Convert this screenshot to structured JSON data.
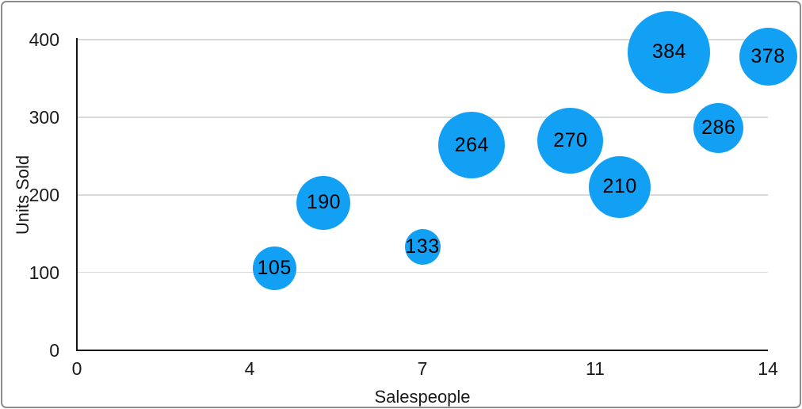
{
  "figure": {
    "background": "#ffffff",
    "frame_border_color": "#8d8d8d"
  },
  "chart_data": {
    "type": "bubble",
    "title": "",
    "xlabel": "Salespeople",
    "ylabel": "Units Sold",
    "xlim": [
      0,
      14
    ],
    "ylim": [
      0,
      400
    ],
    "x_tick_labels": [
      "0",
      "4",
      "7",
      "11",
      "14"
    ],
    "y_tick_values": [
      0,
      100,
      200,
      300,
      400
    ],
    "grid": true,
    "legend": "none",
    "bubble_color": "#12A0F5",
    "bubble_label_color": "#000000",
    "axis_color": "#141414",
    "grid_color": "#d9d9d9",
    "tick_label_color": "#1a1a1a",
    "points": [
      {
        "salespeople": 4,
        "units_sold": 105,
        "label": "105",
        "radius_px": 27.5
      },
      {
        "salespeople": 5,
        "units_sold": 190,
        "label": "190",
        "radius_px": 34
      },
      {
        "salespeople": 7,
        "units_sold": 133,
        "label": "133",
        "radius_px": 22.5
      },
      {
        "salespeople": 8,
        "units_sold": 264,
        "label": "264",
        "radius_px": 42
      },
      {
        "salespeople": 10,
        "units_sold": 270,
        "label": "270",
        "radius_px": 41.5
      },
      {
        "salespeople": 11,
        "units_sold": 210,
        "label": "210",
        "radius_px": 39
      },
      {
        "salespeople": 12,
        "units_sold": 384,
        "label": "384",
        "radius_px": 52
      },
      {
        "salespeople": 13,
        "units_sold": 286,
        "label": "286",
        "radius_px": 31.5
      },
      {
        "salespeople": 14,
        "units_sold": 378,
        "label": "378",
        "radius_px": 36.5
      }
    ]
  }
}
